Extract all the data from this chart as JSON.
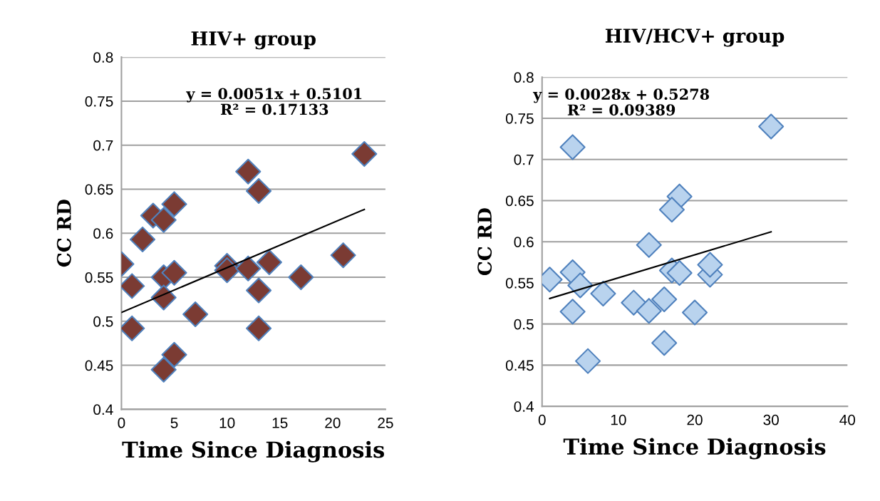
{
  "chart_data": [
    {
      "type": "scatter",
      "title": "HIV+ group",
      "xlabel": "Time Since Diagnosis",
      "ylabel": "CC RD",
      "xlim": [
        0,
        25
      ],
      "xticks": [
        0,
        5,
        10,
        15,
        20,
        25
      ],
      "ylim": [
        0.4,
        0.8
      ],
      "yticks": [
        0.4,
        0.45,
        0.5,
        0.55,
        0.6,
        0.65,
        0.7,
        0.75,
        0.8
      ],
      "grid": "y",
      "marker": "diamond",
      "annotations": [
        "y = 0.0051x + 0.5101\nR² = 0.17133"
      ],
      "series": [
        {
          "color": "#7b3b33",
          "x": [
            0,
            1,
            1,
            2,
            3,
            4,
            5,
            4,
            5,
            4,
            4,
            5,
            7,
            10,
            10,
            12,
            13,
            12,
            13,
            13,
            14,
            17,
            21,
            23
          ],
          "values": [
            0.565,
            0.54,
            0.492,
            0.593,
            0.62,
            0.615,
            0.633,
            0.55,
            0.555,
            0.527,
            0.445,
            0.462,
            0.508,
            0.563,
            0.558,
            0.67,
            0.648,
            0.56,
            0.535,
            0.492,
            0.567,
            0.55,
            0.575,
            0.69
          ]
        },
        {
          "type": "line",
          "color": "#000000",
          "marker": "none",
          "x": [
            0,
            23
          ],
          "values": [
            0.51,
            0.627
          ]
        }
      ]
    },
    {
      "type": "scatter",
      "title": "HIV/HCV+ group",
      "xlabel": "Time Since Diagnosis",
      "ylabel": "CC RD",
      "xlim": [
        0,
        40
      ],
      "xticks": [
        0,
        10,
        20,
        30,
        40
      ],
      "ylim": [
        0.4,
        0.8
      ],
      "yticks": [
        0.4,
        0.45,
        0.5,
        0.55,
        0.6,
        0.65,
        0.7,
        0.75,
        0.8
      ],
      "grid": "y",
      "marker": "diamond",
      "annotations": [
        "y = 0.0028x + 0.5278\nR² = 0.09389"
      ],
      "series": [
        {
          "color": "#b9d3ee",
          "x": [
            1,
            4,
            4,
            5,
            8,
            4,
            6,
            12,
            14,
            16,
            16,
            14,
            18,
            17,
            17,
            18,
            20,
            22,
            22,
            30
          ],
          "values": [
            0.554,
            0.715,
            0.563,
            0.547,
            0.537,
            0.515,
            0.455,
            0.526,
            0.516,
            0.53,
            0.477,
            0.596,
            0.655,
            0.639,
            0.565,
            0.562,
            0.514,
            0.56,
            0.572,
            0.74
          ]
        },
        {
          "type": "line",
          "color": "#000000",
          "marker": "none",
          "x": [
            1,
            30
          ],
          "values": [
            0.531,
            0.612
          ]
        }
      ]
    }
  ]
}
